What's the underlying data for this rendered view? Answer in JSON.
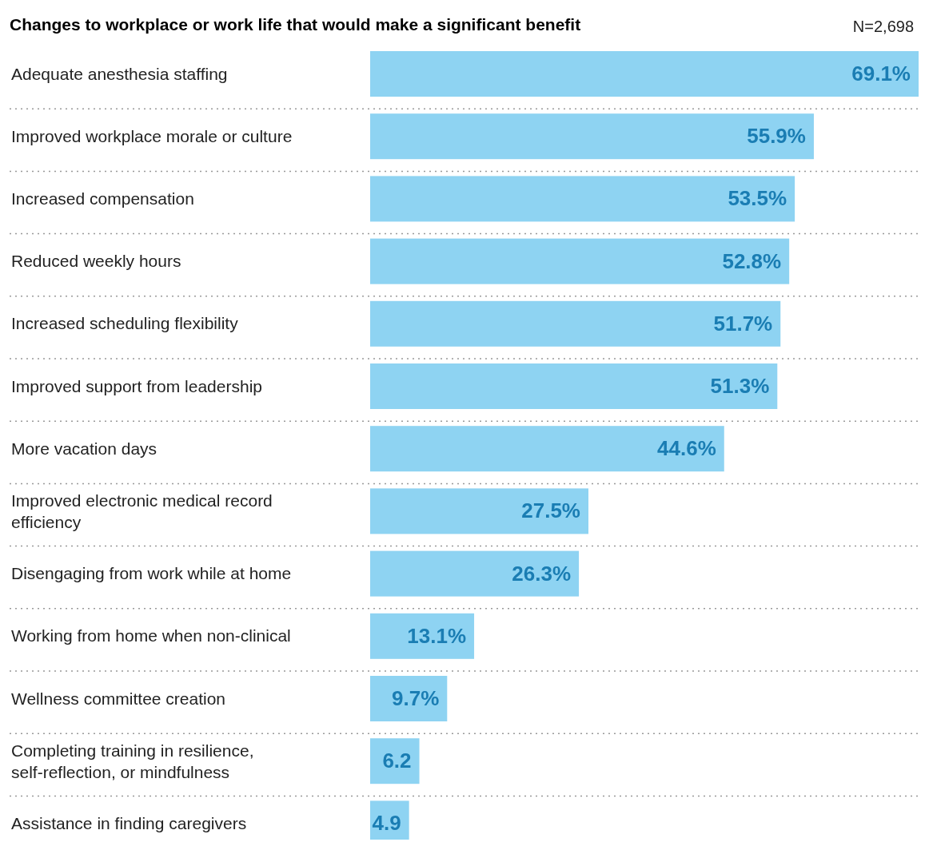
{
  "chart_data": {
    "type": "bar",
    "orientation": "horizontal",
    "title": "Changes to workplace or work life that would make a significant benefit",
    "annotations": [
      "N=2,698"
    ],
    "categories": [
      "Adequate anesthesia staffing",
      "Improved workplace morale or culture",
      "Increased compensation",
      "Reduced weekly hours",
      "Increased scheduling flexibility",
      "Improved support from leadership",
      "More vacation days",
      "Improved electronic medical record efficiency",
      "Disengaging from work while at home",
      "Working from home when non-clinical",
      "Wellness committee creation",
      "Completing training in resilience, self-reflection, or mindfulness",
      "Assistance in finding caregivers"
    ],
    "values": [
      69.1,
      55.9,
      53.5,
      52.8,
      51.7,
      51.3,
      44.6,
      27.5,
      26.3,
      13.1,
      9.7,
      6.2,
      4.9
    ],
    "value_labels": [
      "69.1%",
      "55.9%",
      "53.5%",
      "52.8%",
      "51.7%",
      "51.3%",
      "44.6%",
      "27.5%",
      "26.3%",
      "13.1%",
      "9.7%",
      "6.2",
      "4.9"
    ],
    "color": "#8ed3f2",
    "xlim": [
      0,
      69.1
    ],
    "tick_labels": "y"
  }
}
